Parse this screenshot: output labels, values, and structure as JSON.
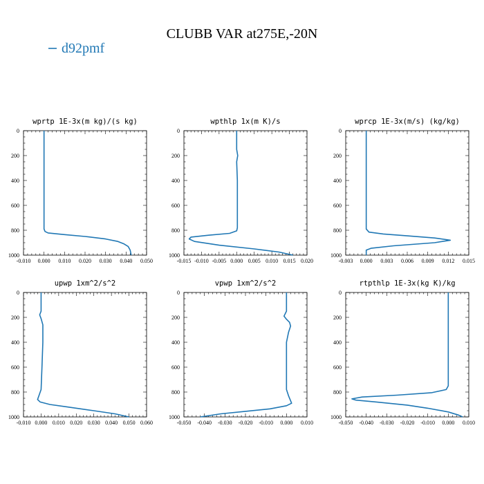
{
  "figure": {
    "title": "CLUBB VAR at275E,-20N",
    "legend": [
      {
        "label": "d92pmf",
        "color": "#1f77b4"
      }
    ]
  },
  "chart_data": [
    {
      "type": "line",
      "title": "wprtp  1E-3x(m kg)/(s kg)",
      "xlim": [
        -0.01,
        0.05
      ],
      "ylim": [
        1000,
        0
      ],
      "xticks": [
        "-0.010",
        "0.000",
        "0.010",
        "0.020",
        "0.030",
        "0.040",
        "0.050"
      ],
      "xtick_values": [
        -0.01,
        0.0,
        0.01,
        0.02,
        0.03,
        0.04,
        0.05
      ],
      "yticks": [
        "0",
        "200",
        "400",
        "600",
        "800",
        "1000"
      ],
      "ytick_values": [
        0,
        200,
        400,
        600,
        800,
        1000
      ],
      "series": [
        {
          "name": "d92pmf",
          "color": "#1f77b4",
          "points": [
            [
              0.0,
              0
            ],
            [
              0.0,
              200
            ],
            [
              0.0,
              400
            ],
            [
              0.0,
              600
            ],
            [
              0.0,
              790
            ],
            [
              0.0005,
              810
            ],
            [
              0.002,
              822
            ],
            [
              0.01,
              835
            ],
            [
              0.02,
              850
            ],
            [
              0.03,
              870
            ],
            [
              0.036,
              890
            ],
            [
              0.039,
              910
            ],
            [
              0.041,
              930
            ],
            [
              0.042,
              960
            ],
            [
              0.0425,
              1000
            ]
          ]
        }
      ]
    },
    {
      "type": "line",
      "title": "wpthlp  1x(m K)/s",
      "xlim": [
        -0.015,
        0.02
      ],
      "ylim": [
        1000,
        0
      ],
      "xticks": [
        "-0.015",
        "-0.010",
        "-0.005",
        "0.000",
        "0.005",
        "0.010",
        "0.015",
        "0.020"
      ],
      "xtick_values": [
        -0.015,
        -0.01,
        -0.005,
        0.0,
        0.005,
        0.01,
        0.015,
        0.02
      ],
      "yticks": [
        "0",
        "200",
        "400",
        "600",
        "800",
        "1000"
      ],
      "ytick_values": [
        0,
        200,
        400,
        600,
        800,
        1000
      ],
      "series": [
        {
          "name": "d92pmf",
          "color": "#1f77b4",
          "points": [
            [
              0.0,
              0
            ],
            [
              0.0,
              150
            ],
            [
              0.0003,
              200
            ],
            [
              0.0,
              250
            ],
            [
              0.0002,
              400
            ],
            [
              0.0002,
              600
            ],
            [
              0.0002,
              780
            ],
            [
              0.0,
              805
            ],
            [
              -0.002,
              825
            ],
            [
              -0.008,
              840
            ],
            [
              -0.013,
              855
            ],
            [
              -0.0135,
              870
            ],
            [
              -0.012,
              890
            ],
            [
              -0.005,
              920
            ],
            [
              0.005,
              950
            ],
            [
              0.012,
              975
            ],
            [
              0.016,
              1000
            ]
          ]
        }
      ]
    },
    {
      "type": "line",
      "title": "wprcp  1E-3x(m/s) (kg/kg)",
      "xlim": [
        -0.003,
        0.015
      ],
      "ylim": [
        1000,
        0
      ],
      "xticks": [
        "-0.003",
        "0.000",
        "0.003",
        "0.006",
        "0.009",
        "0.012",
        "0.015"
      ],
      "xtick_values": [
        -0.003,
        0.0,
        0.003,
        0.006,
        0.009,
        0.012,
        0.015
      ],
      "yticks": [
        "0",
        "200",
        "400",
        "600",
        "800",
        "1000"
      ],
      "ytick_values": [
        0,
        200,
        400,
        600,
        800,
        1000
      ],
      "series": [
        {
          "name": "d92pmf",
          "color": "#1f77b4",
          "points": [
            [
              0.0,
              0
            ],
            [
              0.0,
              400
            ],
            [
              0.0,
              790
            ],
            [
              0.0004,
              815
            ],
            [
              0.0025,
              830
            ],
            [
              0.006,
              845
            ],
            [
              0.01,
              862
            ],
            [
              0.0123,
              880
            ],
            [
              0.01,
              900
            ],
            [
              0.004,
              925
            ],
            [
              0.0007,
              945
            ],
            [
              0.0,
              960
            ],
            [
              0.0,
              1000
            ]
          ]
        }
      ]
    },
    {
      "type": "line",
      "title": "upwp  1xm^2/s^2",
      "xlim": [
        -0.01,
        0.06
      ],
      "ylim": [
        1000,
        0
      ],
      "xticks": [
        "-0.010",
        "0.000",
        "0.010",
        "0.020",
        "0.030",
        "0.040",
        "0.050",
        "0.060"
      ],
      "xtick_values": [
        -0.01,
        0.0,
        0.01,
        0.02,
        0.03,
        0.04,
        0.05,
        0.06
      ],
      "yticks": [
        "0",
        "200",
        "400",
        "600",
        "800",
        "1000"
      ],
      "ytick_values": [
        0,
        200,
        400,
        600,
        800,
        1000
      ],
      "series": [
        {
          "name": "d92pmf",
          "color": "#1f77b4",
          "points": [
            [
              0.0,
              0
            ],
            [
              0.0,
              150
            ],
            [
              -0.0008,
              180
            ],
            [
              0.0,
              210
            ],
            [
              0.001,
              260
            ],
            [
              0.001,
              400
            ],
            [
              0.0005,
              600
            ],
            [
              0.0,
              780
            ],
            [
              -0.001,
              820
            ],
            [
              -0.002,
              860
            ],
            [
              -0.0005,
              880
            ],
            [
              0.005,
              900
            ],
            [
              0.015,
              920
            ],
            [
              0.03,
              950
            ],
            [
              0.042,
              975
            ],
            [
              0.05,
              1000
            ]
          ]
        }
      ]
    },
    {
      "type": "line",
      "title": "vpwp  1xm^2/s^2",
      "xlim": [
        -0.05,
        0.01
      ],
      "ylim": [
        1000,
        0
      ],
      "xticks": [
        "-0.050",
        "-0.040",
        "-0.030",
        "-0.020",
        "-0.010",
        "0.000",
        "0.010"
      ],
      "xtick_values": [
        -0.05,
        -0.04,
        -0.03,
        -0.02,
        -0.01,
        0.0,
        0.01
      ],
      "yticks": [
        "0",
        "200",
        "400",
        "600",
        "800",
        "1000"
      ],
      "ytick_values": [
        0,
        200,
        400,
        600,
        800,
        1000
      ],
      "series": [
        {
          "name": "d92pmf",
          "color": "#1f77b4",
          "points": [
            [
              0.0,
              0
            ],
            [
              0.0,
              150
            ],
            [
              -0.0012,
              190
            ],
            [
              0.0,
              215
            ],
            [
              0.0015,
              240
            ],
            [
              0.002,
              270
            ],
            [
              0.001,
              320
            ],
            [
              0.0,
              400
            ],
            [
              0.0,
              600
            ],
            [
              0.0,
              780
            ],
            [
              0.001,
              830
            ],
            [
              0.002,
              870
            ],
            [
              0.0025,
              890
            ],
            [
              0.0,
              910
            ],
            [
              -0.008,
              935
            ],
            [
              -0.02,
              955
            ],
            [
              -0.032,
              975
            ],
            [
              -0.042,
              1000
            ]
          ]
        }
      ]
    },
    {
      "type": "line",
      "title": "rtpthlp  1E-3x(kg K)/kg",
      "xlim": [
        -0.05,
        0.01
      ],
      "ylim": [
        1000,
        0
      ],
      "xticks": [
        "-0.050",
        "-0.040",
        "-0.030",
        "-0.020",
        "-0.010",
        "0.000",
        "0.010"
      ],
      "xtick_values": [
        -0.05,
        -0.04,
        -0.03,
        -0.02,
        -0.01,
        0.0,
        0.01
      ],
      "yticks": [
        "0",
        "200",
        "400",
        "600",
        "800",
        "1000"
      ],
      "ytick_values": [
        0,
        200,
        400,
        600,
        800,
        1000
      ],
      "series": [
        {
          "name": "d92pmf",
          "color": "#1f77b4",
          "points": [
            [
              0.0,
              0
            ],
            [
              0.0,
              400
            ],
            [
              0.0,
              750
            ],
            [
              -0.001,
              780
            ],
            [
              -0.008,
              805
            ],
            [
              -0.025,
              825
            ],
            [
              -0.042,
              840
            ],
            [
              -0.047,
              855
            ],
            [
              -0.045,
              865
            ],
            [
              -0.035,
              880
            ],
            [
              -0.02,
              905
            ],
            [
              -0.01,
              930
            ],
            [
              0.0,
              960
            ],
            [
              0.005,
              985
            ],
            [
              0.007,
              1000
            ]
          ]
        }
      ]
    }
  ]
}
